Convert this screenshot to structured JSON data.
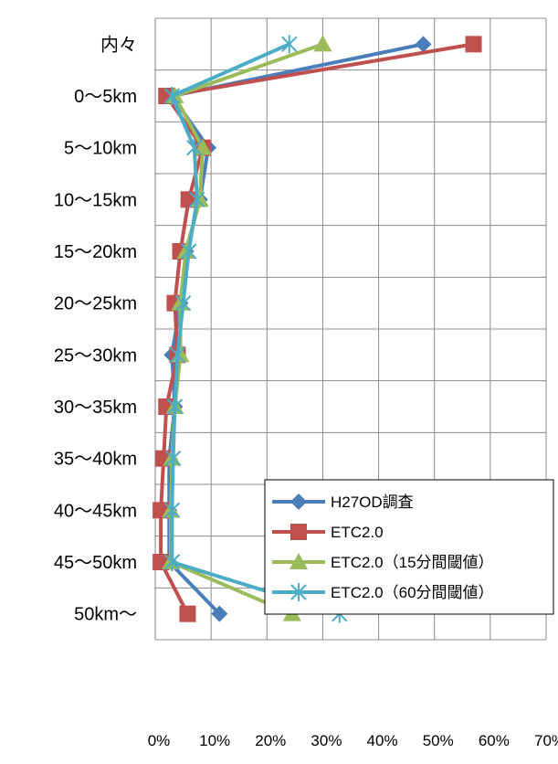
{
  "chart_data": {
    "type": "line",
    "orientation": "horizontal",
    "title": "",
    "xlabel": "",
    "ylabel": "",
    "categories": [
      "内々",
      "0〜5km",
      "5〜10km",
      "10〜15km",
      "15〜20km",
      "20〜25km",
      "25〜30km",
      "30〜35km",
      "35〜40km",
      "40〜45km",
      "45〜50km",
      "50km〜"
    ],
    "xlim": [
      0,
      70
    ],
    "x_ticks": [
      "0%",
      "10%",
      "20%",
      "30%",
      "40%",
      "50%",
      "60%",
      "70%"
    ],
    "grid": true,
    "legend_position": "right",
    "series": [
      {
        "name": "H27OD調査",
        "color": "#4a7ebb",
        "marker": "diamond",
        "values": [
          48.0,
          3.0,
          9.5,
          8.0,
          5.5,
          4.5,
          3.0,
          3.5,
          2.5,
          2.5,
          2.5,
          11.5
        ]
      },
      {
        "name": "ETC2.0",
        "color": "#c0504d",
        "marker": "square",
        "values": [
          57.0,
          2.0,
          8.5,
          6.0,
          4.5,
          3.5,
          4.0,
          2.0,
          1.5,
          1.0,
          1.0,
          5.8
        ]
      },
      {
        "name": "ETC2.0（15分間閾値）",
        "color": "#9bbb59",
        "marker": "triangle",
        "values": [
          30.0,
          3.5,
          8.5,
          8.0,
          5.5,
          4.5,
          4.5,
          3.5,
          3.0,
          2.8,
          2.8,
          24.5
        ]
      },
      {
        "name": "ETC2.0（60分間閾値）",
        "color": "#4bacc6",
        "marker": "star",
        "values": [
          24.0,
          3.0,
          7.0,
          7.5,
          6.0,
          5.0,
          4.0,
          3.5,
          3.2,
          3.0,
          3.0,
          33.0
        ]
      }
    ]
  }
}
